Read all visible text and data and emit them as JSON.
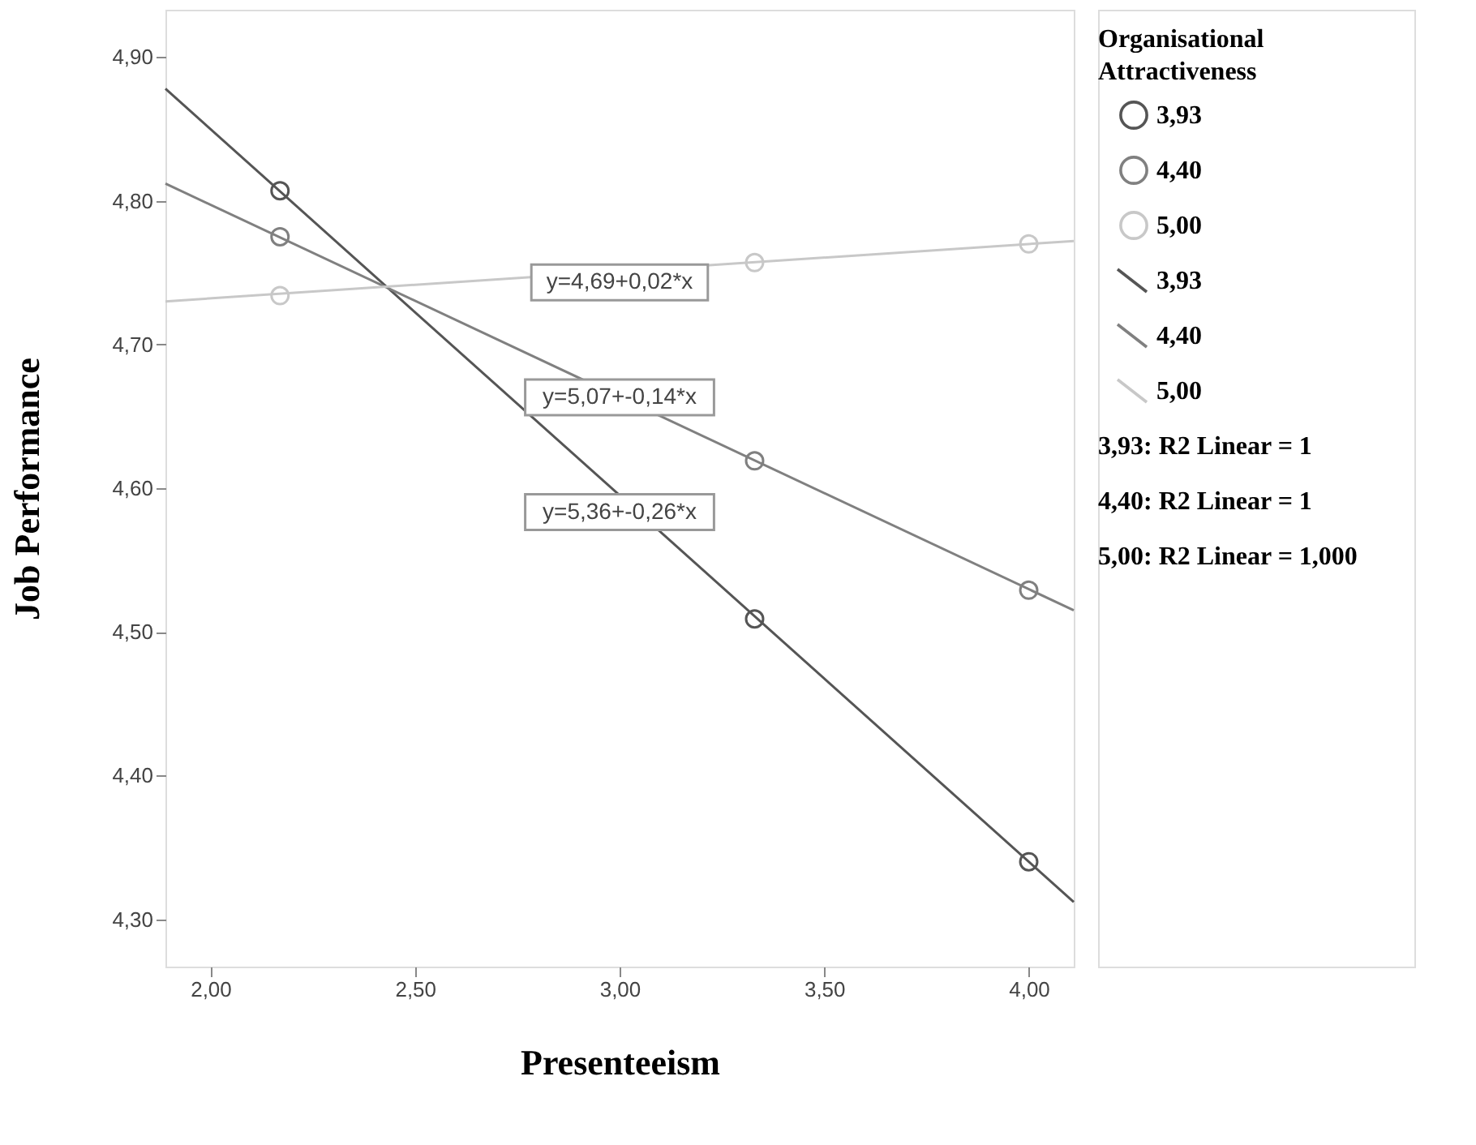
{
  "chart_data": {
    "type": "scatter",
    "xlabel": "Presenteeism",
    "ylabel": "Job Performance",
    "legend_title": "Organisational Attractiveness",
    "legend": "right",
    "marker": "circle",
    "grid": false,
    "xlim": [
      1.89,
      4.11
    ],
    "ylim": [
      4.267,
      4.933
    ],
    "xticks": [
      {
        "value": 2.0,
        "label": "2,00"
      },
      {
        "value": 2.5,
        "label": "2,50"
      },
      {
        "value": 3.0,
        "label": "3,00"
      },
      {
        "value": 3.5,
        "label": "3,50"
      },
      {
        "value": 4.0,
        "label": "4,00"
      }
    ],
    "yticks": [
      {
        "value": 4.3,
        "label": "4,30"
      },
      {
        "value": 4.4,
        "label": "4,40"
      },
      {
        "value": 4.5,
        "label": "4,50"
      },
      {
        "value": 4.6,
        "label": "4,60"
      },
      {
        "value": 4.7,
        "label": "4,70"
      },
      {
        "value": 4.8,
        "label": "4,80"
      },
      {
        "value": 4.9,
        "label": "4,90"
      }
    ],
    "series": [
      {
        "name": "3,93",
        "color": "#555555",
        "x": [
          2.17,
          3.33,
          4.0
        ],
        "values": [
          4.807,
          4.509,
          4.34
        ]
      },
      {
        "name": "4,40",
        "color": "#808080",
        "x": [
          2.17,
          3.33,
          4.0
        ],
        "values": [
          4.775,
          4.619,
          4.529
        ]
      },
      {
        "name": "5,00",
        "color": "#c8c8c8",
        "x": [
          2.17,
          3.33,
          4.0
        ],
        "values": [
          4.734,
          4.757,
          4.77
        ]
      },
      {
        "name": "3,93",
        "type": "line",
        "marker": "none",
        "color": "#555555",
        "x": [
          1.89,
          4.11
        ],
        "values": [
          4.878,
          4.312
        ]
      },
      {
        "name": "4,40",
        "type": "line",
        "marker": "none",
        "color": "#808080",
        "x": [
          1.89,
          4.11
        ],
        "values": [
          4.812,
          4.515
        ]
      },
      {
        "name": "5,00",
        "type": "line",
        "marker": "none",
        "color": "#c8c8c8",
        "x": [
          1.89,
          4.11
        ],
        "values": [
          4.73,
          4.772
        ]
      }
    ],
    "annotations": [
      "y=4,69+0,02*x",
      "y=5,07+-0,14*x",
      "y=5,36+-0,26*x",
      "3,93: R2 Linear = 1",
      "4,40: R2 Linear = 1",
      "5,00: R2 Linear = 1,000"
    ]
  }
}
